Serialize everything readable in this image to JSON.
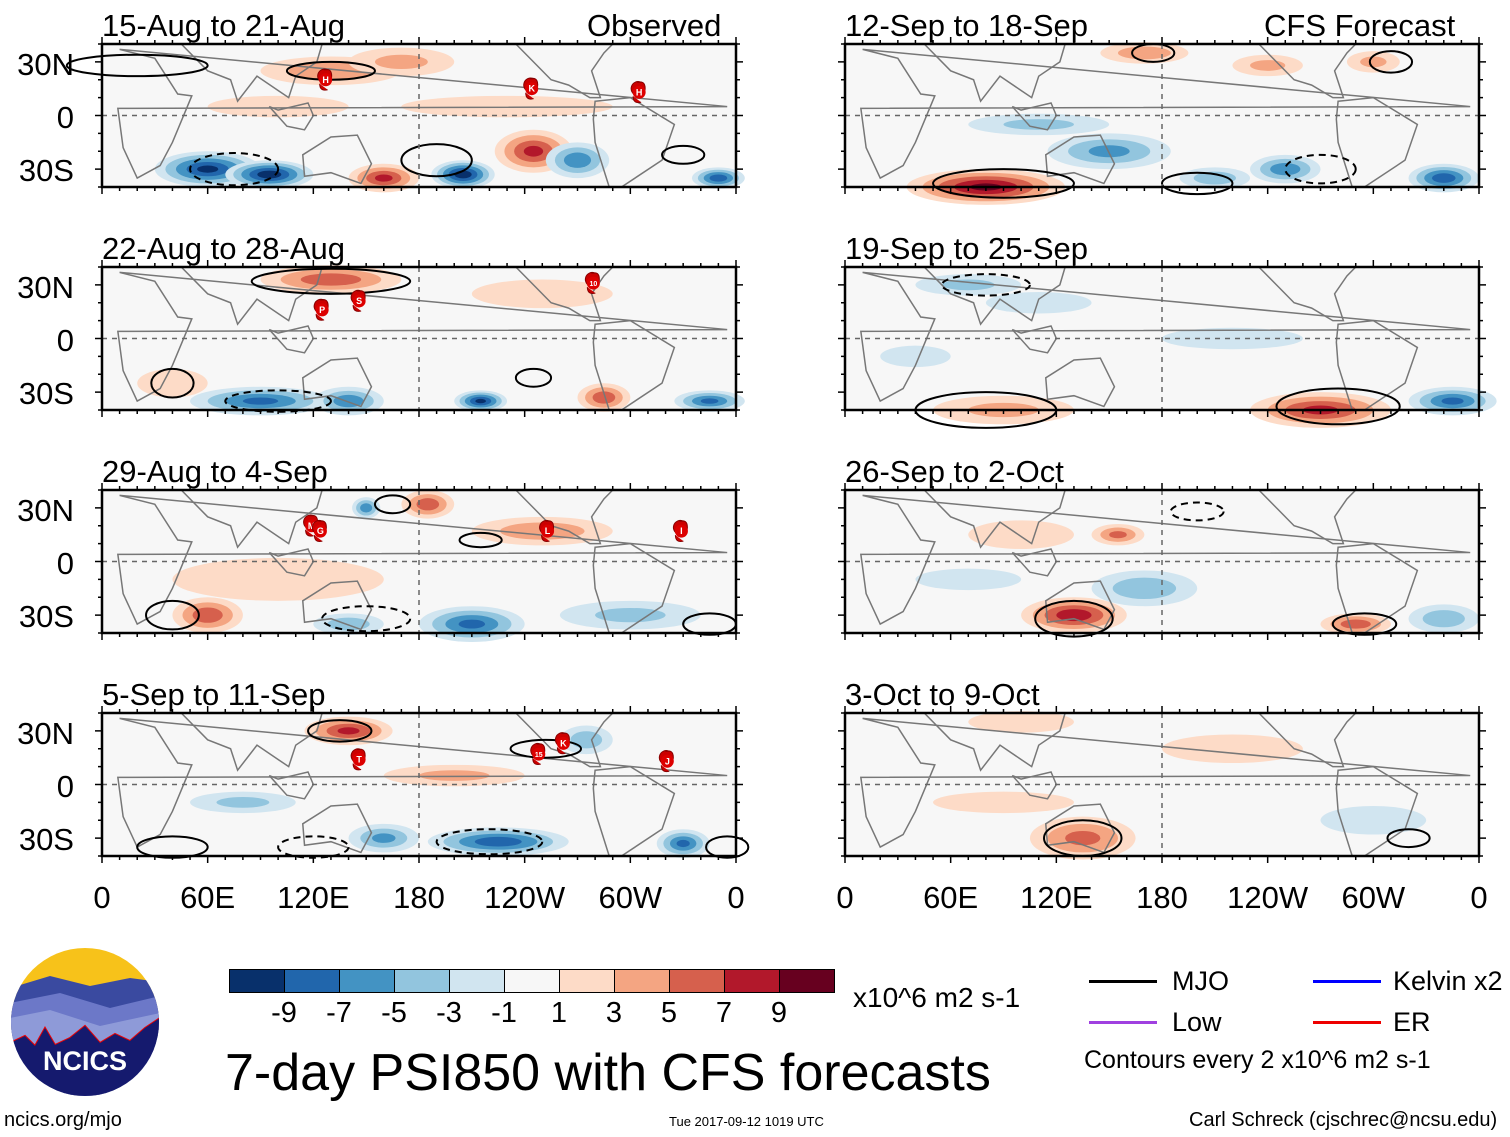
{
  "chart_data": {
    "type": "heatmap",
    "title": "7-day PSI850 with CFS forecasts",
    "units": "x10^6 m2 s-1",
    "colorbar": {
      "ticks": [
        "-9",
        "-7",
        "-5",
        "-3",
        "-1",
        "1",
        "3",
        "5",
        "7",
        "9"
      ],
      "colors": [
        "#08306b",
        "#2166ac",
        "#4393c3",
        "#92c5de",
        "#d1e5f0",
        "#f7f7f7",
        "#fddbc7",
        "#f4a582",
        "#d6604d",
        "#b2182b",
        "#67001f"
      ]
    },
    "x_ticks": [
      "0",
      "60E",
      "120E",
      "180",
      "120W",
      "60W",
      "0"
    ],
    "y_ticks": [
      "30N",
      "0",
      "30S"
    ],
    "columns": {
      "left": "Observed",
      "right": "CFS Forecast"
    },
    "panels": [
      {
        "title": "15-Aug to 21-Aug",
        "column": "left",
        "storms": [
          {
            "label": "H",
            "lon": 127,
            "lat": 20
          },
          {
            "label": "K",
            "lon": 244,
            "lat": 15
          },
          {
            "label": "H",
            "lon": 305,
            "lat": 13
          }
        ]
      },
      {
        "title": "22-Aug to 28-Aug",
        "column": "left",
        "storms": [
          {
            "label": "P",
            "lon": 125,
            "lat": 16
          },
          {
            "label": "S",
            "lon": 146,
            "lat": 21
          },
          {
            "label": "10",
            "lon": 279,
            "lat": 31
          }
        ]
      },
      {
        "title": "29-Aug to 4-Sep",
        "column": "left",
        "storms": [
          {
            "label": "M",
            "lon": 119,
            "lat": 20
          },
          {
            "label": "G",
            "lon": 124,
            "lat": 17
          },
          {
            "label": "L",
            "lon": 253,
            "lat": 17
          },
          {
            "label": "I",
            "lon": 329,
            "lat": 17
          }
        ]
      },
      {
        "title": "5-Sep to 11-Sep",
        "column": "left",
        "storms": [
          {
            "label": "T",
            "lon": 146,
            "lat": 14
          },
          {
            "label": "15",
            "lon": 248,
            "lat": 17
          },
          {
            "label": "K",
            "lon": 262,
            "lat": 23
          },
          {
            "label": "J",
            "lon": 321,
            "lat": 13
          }
        ]
      },
      {
        "title": "12-Sep to 18-Sep",
        "column": "right",
        "storms": []
      },
      {
        "title": "19-Sep to 25-Sep",
        "column": "right",
        "storms": []
      },
      {
        "title": "26-Sep to 2-Oct",
        "column": "right",
        "storms": []
      },
      {
        "title": "3-Oct to 9-Oct",
        "column": "right",
        "storms": []
      }
    ],
    "legend": {
      "items": [
        {
          "label": "MJO",
          "color": "#000000"
        },
        {
          "label": "Kelvin x2",
          "color": "#0000ff"
        },
        {
          "label": "Low",
          "color": "#a040e0"
        },
        {
          "label": "ER",
          "color": "#ee0000"
        }
      ],
      "note": "Contours every 2 x10^6 m2 s-1"
    }
  },
  "logo": {
    "text": "NCICS"
  },
  "footer": {
    "url": "ncics.org/mjo",
    "timestamp": "Tue 2017-09-12 1019 UTC",
    "author": "Carl Schreck (cjschrec@ncsu.edu)"
  }
}
